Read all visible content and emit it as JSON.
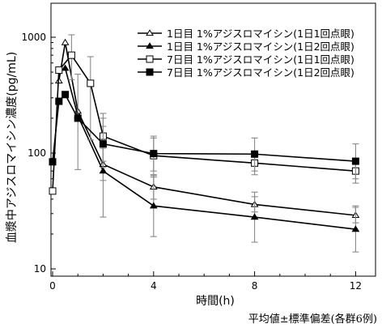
{
  "chart_data": {
    "type": "line",
    "xlabel": "時間(h)",
    "ylabel": "血漿中アジスロマイシン濃度(pg/mL)",
    "x_ticks": [
      0,
      4,
      8,
      12
    ],
    "y_ticks": [
      10,
      100,
      1000
    ],
    "y_scale": "log",
    "xlim": [
      0,
      12.7
    ],
    "ylim": [
      10,
      1600
    ],
    "legend_position": "top-right",
    "footnote": "平均値±標準偏差(各群6例)",
    "series": [
      {
        "name": "1日目 1%アジスロマイシン(1日1回点眼)",
        "marker": "triangle-open",
        "points": [
          {
            "x": 0.25,
            "y": 420,
            "err_low": null,
            "err_high": null
          },
          {
            "x": 0.5,
            "y": 900,
            "err_low": null,
            "err_high": null
          },
          {
            "x": 1,
            "y": 230,
            "err_low": null,
            "err_high": null
          },
          {
            "x": 2,
            "y": 80,
            "err_low": 58,
            "err_high": 110
          },
          {
            "x": 4,
            "y": 51,
            "err_low": 40,
            "err_high": 65
          },
          {
            "x": 8,
            "y": 36,
            "err_low": 31,
            "err_high": 42
          },
          {
            "x": 12,
            "y": 29,
            "err_low": 25,
            "err_high": 34
          }
        ]
      },
      {
        "name": "1日目 1%アジスロマイシン(1日2回点眼)",
        "marker": "triangle-filled",
        "points": [
          {
            "x": 0.5,
            "y": 540,
            "err_low": null,
            "err_high": null
          },
          {
            "x": 1,
            "y": 210,
            "err_low": null,
            "err_high": null
          },
          {
            "x": 2,
            "y": 70,
            "err_low": 28,
            "err_high": 170
          },
          {
            "x": 4,
            "y": 35,
            "err_low": 19,
            "err_high": 64
          },
          {
            "x": 8,
            "y": 28,
            "err_low": 17,
            "err_high": 46
          },
          {
            "x": 12,
            "y": 22,
            "err_low": 14,
            "err_high": 35
          }
        ]
      },
      {
        "name": "7日目 1%アジスロマイシン(1日1回点眼)",
        "marker": "square-open",
        "points": [
          {
            "x": 0,
            "y": 47,
            "err_low": null,
            "err_high": null
          },
          {
            "x": 0.25,
            "y": 520,
            "err_low": null,
            "err_high": null
          },
          {
            "x": 0.75,
            "y": 700,
            "err_low": 430,
            "err_high": 1050
          },
          {
            "x": 1.5,
            "y": 400,
            "err_low": 130,
            "err_high": 680
          },
          {
            "x": 2,
            "y": 140,
            "err_low": 85,
            "err_high": 220
          },
          {
            "x": 4,
            "y": 95,
            "err_low": 62,
            "err_high": 140
          },
          {
            "x": 8,
            "y": 82,
            "err_low": 65,
            "err_high": 100
          },
          {
            "x": 12,
            "y": 70,
            "err_low": 55,
            "err_high": 88
          }
        ]
      },
      {
        "name": "7日目 1%アジスロマイシン(1日2回点眼)",
        "marker": "square-filled",
        "points": [
          {
            "x": 0,
            "y": 84,
            "err_low": null,
            "err_high": null
          },
          {
            "x": 0.25,
            "y": 280,
            "err_low": null,
            "err_high": null
          },
          {
            "x": 0.5,
            "y": 320,
            "err_low": null,
            "err_high": null
          },
          {
            "x": 1,
            "y": 200,
            "err_low": 72,
            "err_high": 480
          },
          {
            "x": 2,
            "y": 120,
            "err_low": 75,
            "err_high": 200
          },
          {
            "x": 4,
            "y": 99,
            "err_low": 70,
            "err_high": 135
          },
          {
            "x": 8,
            "y": 98,
            "err_low": 70,
            "err_high": 135
          },
          {
            "x": 12,
            "y": 85,
            "err_low": 60,
            "err_high": 120
          }
        ]
      }
    ]
  }
}
